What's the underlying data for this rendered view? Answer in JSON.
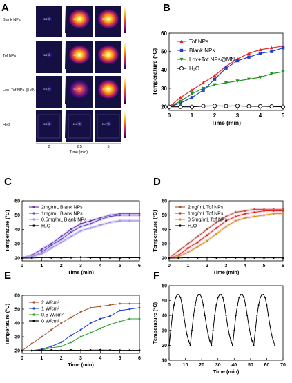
{
  "panels": {
    "A": "A",
    "B": "B",
    "C": "C",
    "D": "D",
    "E": "E",
    "F": "F"
  },
  "thermal": {
    "rows": [
      "Blank NPs",
      "Tof NPs",
      "Lox+Tof NPs @MN",
      "H₂O"
    ],
    "times": [
      "0",
      "2.5",
      "5"
    ],
    "xlabel": "Time (min)",
    "readings": [
      [
        "25.8 °C",
        "49.1 °C",
        "52.1 °C"
      ],
      [
        "25.8 °C",
        "49.3 °C",
        "54.6 °C"
      ],
      [
        "23.3 °C",
        "34.9 °C",
        "39.8 °C"
      ],
      [
        "20.6 °C",
        "20.8 °C",
        "20.9 °C"
      ]
    ]
  },
  "chart_data": [
    {
      "panel": "B",
      "type": "line",
      "xlabel": "Time (min)",
      "ylabel": "Temperature (°C)",
      "xlim": [
        0,
        5
      ],
      "ylim": [
        18,
        60
      ],
      "xticks": [
        0,
        1,
        2,
        3,
        4,
        5
      ],
      "yticks": [
        20,
        30,
        40,
        50,
        60
      ],
      "legend_position": "top-left",
      "series": [
        {
          "name": "Tof NPs",
          "color": "#e8231f",
          "marker": "triangle-up",
          "x": [
            0,
            0.5,
            1,
            1.5,
            2,
            2.5,
            3,
            3.5,
            4,
            4.5,
            5
          ],
          "y": [
            20,
            25,
            29,
            33,
            37,
            42,
            46,
            49,
            51,
            52,
            53
          ]
        },
        {
          "name": "Blank NPs",
          "color": "#1f3fd0",
          "marker": "square",
          "x": [
            0,
            0.5,
            1,
            1.5,
            2,
            2.5,
            3,
            3.5,
            4,
            4.5,
            5
          ],
          "y": [
            20,
            22,
            25,
            29,
            35,
            41,
            45,
            47,
            49,
            50,
            52
          ]
        },
        {
          "name": "Lox+Tof NPs@MN",
          "color": "#1f8f1f",
          "marker": "triangle-down",
          "x": [
            0,
            0.5,
            1,
            1.5,
            2,
            2.5,
            3,
            3.5,
            4,
            4.5,
            5
          ],
          "y": [
            20,
            23,
            27,
            30,
            32,
            33,
            34,
            35,
            36,
            38,
            39
          ]
        },
        {
          "name": "H₂O",
          "color": "#000000",
          "marker": "circle-open",
          "x": [
            0,
            0.5,
            1,
            1.5,
            2,
            2.5,
            3,
            3.5,
            4,
            4.5,
            5
          ],
          "y": [
            20,
            20,
            20,
            20.4,
            20.5,
            20.4,
            20.5,
            20.3,
            20.3,
            20.2,
            20
          ]
        }
      ]
    },
    {
      "panel": "C",
      "type": "line",
      "xlabel": "Time (min)",
      "ylabel": "Temperature (°C)",
      "xlim": [
        0,
        6
      ],
      "ylim": [
        18,
        60
      ],
      "xticks": [
        0,
        1,
        2,
        3,
        4,
        5,
        6
      ],
      "yticks": [
        20,
        30,
        40,
        50,
        60
      ],
      "legend_position": "top-left",
      "series": [
        {
          "name": "2mg/mL Blank NPs",
          "color": "#7030a0",
          "x": [
            0,
            0.5,
            1,
            1.5,
            2,
            2.5,
            3,
            3.5,
            4,
            4.5,
            5,
            5.5,
            6
          ],
          "y": [
            20,
            22,
            26,
            30,
            35,
            40,
            44,
            46,
            48,
            50,
            51,
            51,
            51
          ]
        },
        {
          "name": "1mg/mL Blank NPs",
          "color": "#4a50c8",
          "x": [
            0,
            0.5,
            1,
            1.5,
            2,
            2.5,
            3,
            3.5,
            4,
            4.5,
            5,
            5.5,
            6
          ],
          "y": [
            20,
            21,
            24,
            29,
            33,
            38,
            42,
            44,
            47,
            49,
            50,
            50,
            50
          ]
        },
        {
          "name": "0.5mg/mL Blank NPs",
          "color": "#9e8ff0",
          "x": [
            0,
            0.5,
            1,
            1.5,
            2,
            2.5,
            3,
            3.5,
            4,
            4.5,
            5,
            5.5,
            6
          ],
          "y": [
            20,
            21,
            23,
            27,
            31,
            35,
            39,
            41,
            43,
            45,
            46,
            46,
            46
          ]
        },
        {
          "name": "H₂O",
          "color": "#000000",
          "x": [
            0,
            0.5,
            1,
            1.5,
            2,
            2.5,
            3,
            3.5,
            4,
            4.5,
            5,
            5.5,
            6
          ],
          "y": [
            20,
            20,
            20.3,
            20.2,
            20.1,
            20.3,
            20.5,
            20.2,
            20.2,
            20.1,
            20.1,
            20.2,
            20.2
          ]
        }
      ]
    },
    {
      "panel": "D",
      "type": "line",
      "xlabel": "Time (min)",
      "ylabel": "Temperature (°C)",
      "xlim": [
        0,
        6
      ],
      "ylim": [
        18,
        60
      ],
      "xticks": [
        0,
        1,
        2,
        3,
        4,
        5,
        6
      ],
      "yticks": [
        20,
        30,
        40,
        50,
        60
      ],
      "legend_position": "top-left",
      "series": [
        {
          "name": "2mg/mL Tof NPs",
          "color": "#a0522d",
          "x": [
            0,
            0.5,
            1,
            1.5,
            2,
            2.5,
            3,
            3.5,
            4,
            4.5,
            5,
            5.5,
            6
          ],
          "y": [
            20,
            25,
            30,
            35,
            40,
            45,
            49,
            52,
            53,
            54,
            54,
            54,
            54
          ]
        },
        {
          "name": "1mg/mL Tof NPs",
          "color": "#e8231f",
          "x": [
            0,
            0.5,
            1,
            1.5,
            2,
            2.5,
            3,
            3.5,
            4,
            4.5,
            5,
            5.5,
            6
          ],
          "y": [
            20,
            22,
            27,
            31,
            36,
            41,
            46,
            49,
            51,
            52,
            53,
            53,
            53
          ]
        },
        {
          "name": "0.5mg/mL Tof NPs",
          "color": "#c8a000",
          "x": [
            0,
            0.5,
            1,
            1.5,
            2,
            2.5,
            3,
            3.5,
            4,
            4.5,
            5,
            5.5,
            6
          ],
          "y": [
            20,
            21,
            24,
            28,
            32,
            37,
            42,
            46,
            48,
            49,
            50,
            51,
            51
          ]
        },
        {
          "name": "H₂O",
          "color": "#000000",
          "x": [
            0,
            0.5,
            1,
            1.5,
            2,
            2.5,
            3,
            3.5,
            4,
            4.5,
            5,
            5.5,
            6
          ],
          "y": [
            20,
            20,
            20.3,
            20.2,
            20.3,
            20.1,
            20.2,
            20.2,
            20.1,
            20.1,
            20.1,
            20.1,
            20.1
          ]
        }
      ]
    },
    {
      "panel": "E",
      "type": "line",
      "xlabel": "Time (min)",
      "ylabel": "Temperature (°C)",
      "xlim": [
        0,
        6
      ],
      "ylim": [
        18,
        60
      ],
      "xticks": [
        0,
        1,
        2,
        3,
        4,
        5,
        6
      ],
      "yticks": [
        20,
        30,
        40,
        50,
        60
      ],
      "legend_position": "top-left",
      "series": [
        {
          "name": "2 W/cm²",
          "color": "#a0522d",
          "x": [
            0,
            0.5,
            1,
            1.5,
            2,
            2.5,
            3,
            3.5,
            4,
            4.5,
            5,
            5.5,
            6
          ],
          "y": [
            20,
            25,
            30,
            35,
            40,
            44,
            48,
            51,
            52,
            53,
            54,
            54,
            54
          ]
        },
        {
          "name": "1 W/cm²",
          "color": "#1f3fd0",
          "x": [
            0,
            0.5,
            1,
            1.5,
            2,
            2.5,
            3,
            3.5,
            4,
            4.5,
            5,
            5.5,
            6
          ],
          "y": [
            20,
            20,
            21,
            23,
            26,
            31,
            35,
            40,
            43,
            45,
            49,
            50,
            51
          ]
        },
        {
          "name": "0.5 W/cm²",
          "color": "#2ca02c",
          "x": [
            0,
            0.5,
            1,
            1.5,
            2,
            2.5,
            3,
            3.5,
            4,
            4.5,
            5,
            5.5,
            6
          ],
          "y": [
            20,
            20,
            20.5,
            22,
            23,
            26,
            30,
            33,
            36,
            39,
            41,
            43,
            43
          ]
        },
        {
          "name": "0 W/cm²",
          "color": "#000000",
          "x": [
            0,
            0.5,
            1,
            1.5,
            2,
            2.5,
            3,
            3.5,
            4,
            4.5,
            5,
            5.5,
            6
          ],
          "y": [
            20,
            20,
            20.3,
            20.3,
            20.2,
            20.3,
            20.2,
            20.3,
            20.4,
            20.3,
            20.2,
            20.2,
            20.2
          ]
        }
      ]
    },
    {
      "panel": "F",
      "type": "line",
      "xlabel": "Time (min)",
      "ylabel": "Temperature (°C)",
      "xlim": [
        0,
        70
      ],
      "ylim": [
        10,
        60
      ],
      "xticks": [
        0,
        10,
        20,
        30,
        40,
        50,
        60,
        70
      ],
      "yticks": [
        10,
        20,
        30,
        40,
        50,
        60
      ],
      "series": [
        {
          "name": "",
          "color": "#000000",
          "x": [
            0,
            1,
            2,
            3,
            4,
            5,
            6,
            7,
            8,
            9,
            10,
            11,
            12,
            13,
            14,
            15,
            16,
            17,
            18,
            19,
            20,
            21,
            22,
            23,
            24,
            25,
            26,
            27,
            28,
            29,
            30,
            31,
            32,
            33,
            34,
            35,
            36,
            37,
            38,
            39,
            40,
            41,
            42,
            43,
            44,
            45,
            46,
            47,
            48,
            49,
            50,
            51,
            52,
            53,
            54,
            55,
            56,
            57,
            58,
            59,
            60,
            61,
            62,
            63,
            64,
            65
          ],
          "y": [
            20,
            30,
            40,
            47,
            52,
            54,
            54,
            52,
            47,
            40,
            33,
            27,
            23,
            20,
            30,
            40,
            47,
            52,
            54,
            54,
            52,
            47,
            40,
            33,
            27,
            23,
            20,
            30,
            40,
            47,
            52,
            54,
            54,
            52,
            47,
            40,
            33,
            27,
            23,
            20,
            30,
            40,
            47,
            52,
            54,
            54,
            52,
            47,
            40,
            33,
            27,
            23,
            20,
            30,
            40,
            47,
            52,
            54,
            54,
            52,
            47,
            40,
            33,
            27,
            23,
            20
          ]
        }
      ]
    }
  ]
}
